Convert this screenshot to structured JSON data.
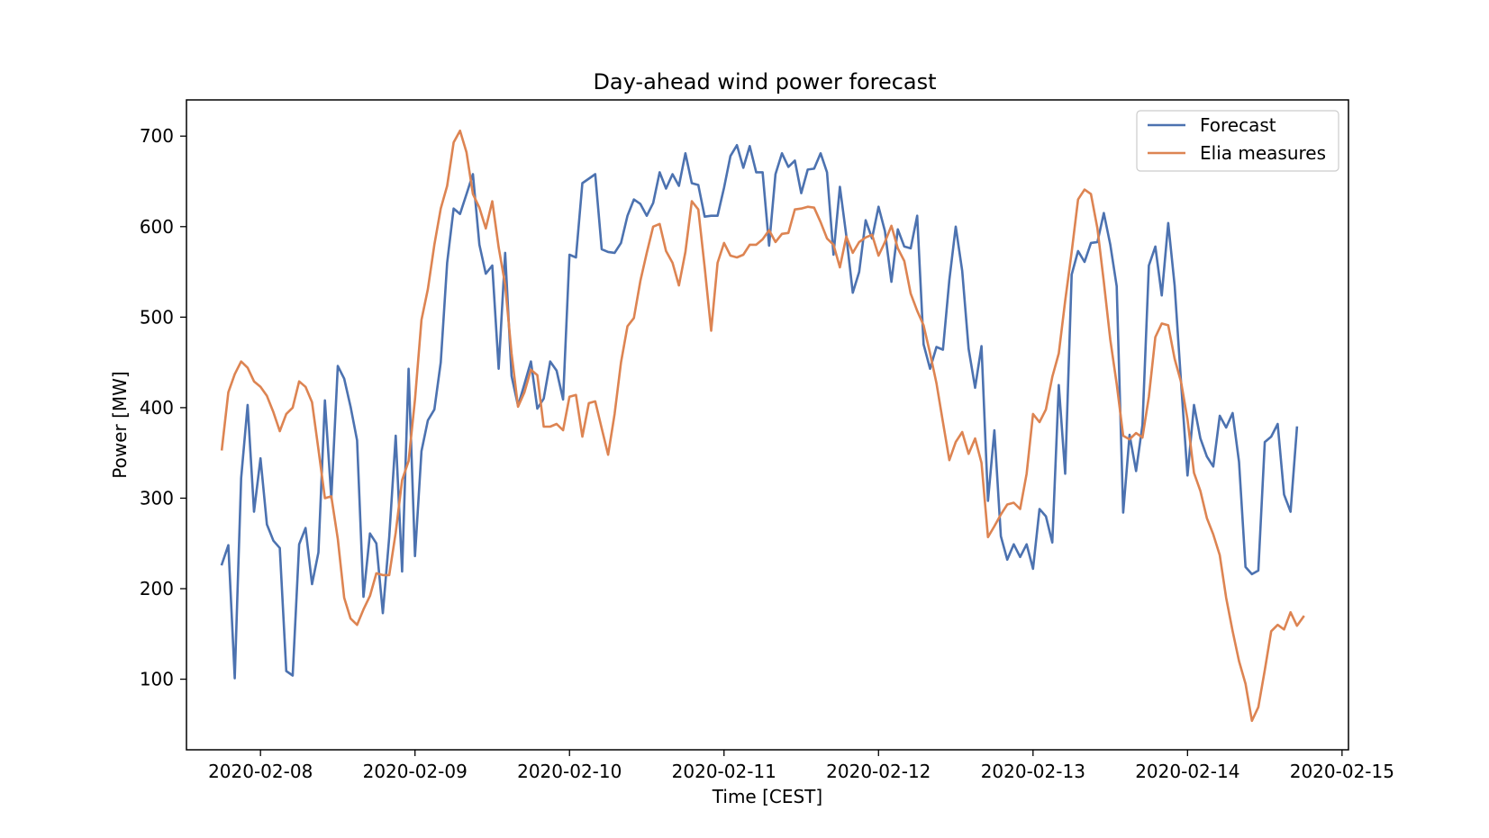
{
  "chart_data": {
    "type": "line",
    "title": "Day-ahead wind power forecast",
    "xlabel": "Time [CEST]",
    "ylabel": "Power [MW]",
    "x_start": "2020-02-07T18:00",
    "x_step_hours": 1,
    "xlim": [
      "2020-02-07 12:30",
      "2020-02-15 01:00"
    ],
    "ylim": [
      22,
      740
    ],
    "x_ticks": [
      "2020-02-08",
      "2020-02-09",
      "2020-02-10",
      "2020-02-11",
      "2020-02-12",
      "2020-02-13",
      "2020-02-14",
      "2020-02-15"
    ],
    "y_ticks": [
      100,
      200,
      300,
      400,
      500,
      600,
      700
    ],
    "grid": false,
    "legend_position": "top-right",
    "series": [
      {
        "name": "Forecast",
        "color": "#4c72b0",
        "values": [
          227,
          248,
          101,
          322,
          403,
          285,
          344,
          271,
          253,
          245,
          109,
          104,
          249,
          267,
          205,
          240,
          408,
          300,
          446,
          432,
          401,
          364,
          191,
          261,
          250,
          173,
          257,
          369,
          219,
          443,
          236,
          352,
          386,
          398,
          450,
          560,
          620,
          614,
          636,
          658,
          580,
          548,
          557,
          443,
          571,
          435,
          402,
          426,
          451,
          399,
          410,
          451,
          441,
          409,
          569,
          566,
          648,
          653,
          658,
          575,
          572,
          571,
          582,
          612,
          630,
          625,
          612,
          626,
          660,
          642,
          658,
          645,
          681,
          648,
          646,
          611,
          612,
          612,
          643,
          678,
          690,
          665,
          689,
          660,
          660,
          579,
          658,
          681,
          666,
          673,
          637,
          663,
          664,
          681,
          660,
          569,
          644,
          590,
          527,
          550,
          607,
          587,
          622,
          595,
          539,
          597,
          578,
          576,
          612,
          470,
          443,
          467,
          464,
          541,
          600,
          551,
          465,
          422,
          468,
          297,
          375,
          258,
          232,
          249,
          235,
          249,
          222,
          288,
          280,
          251,
          425,
          327,
          547,
          573,
          561,
          582,
          583,
          615,
          580,
          534,
          284,
          370,
          330,
          381,
          557,
          578,
          524,
          604,
          535,
          427,
          325,
          403,
          366,
          346,
          335,
          391,
          378,
          394,
          340,
          224,
          216,
          220,
          362,
          368,
          382,
          304,
          285,
          378
        ]
      },
      {
        "name": "Elia measures",
        "color": "#dd8452",
        "values": [
          354,
          417,
          437,
          451,
          444,
          429,
          423,
          413,
          395,
          374,
          393,
          400,
          429,
          423,
          406,
          354,
          300,
          302,
          255,
          190,
          167,
          160,
          177,
          192,
          217,
          215,
          215,
          262,
          320,
          341,
          409,
          497,
          531,
          580,
          620,
          645,
          693,
          706,
          682,
          636,
          621,
          598,
          628,
          577,
          536,
          460,
          401,
          417,
          442,
          436,
          379,
          379,
          382,
          375,
          412,
          414,
          368,
          405,
          407,
          377,
          348,
          393,
          450,
          490,
          499,
          540,
          571,
          600,
          603,
          573,
          560,
          535,
          572,
          628,
          619,
          555,
          485,
          560,
          582,
          568,
          566,
          569,
          580,
          580,
          586,
          596,
          583,
          592,
          593,
          619,
          620,
          622,
          621,
          605,
          587,
          580,
          555,
          589,
          571,
          583,
          588,
          591,
          568,
          583,
          601,
          576,
          562,
          526,
          507,
          491,
          460,
          427,
          384,
          342,
          362,
          373,
          349,
          366,
          339,
          257,
          269,
          282,
          293,
          295,
          288,
          327,
          393,
          384,
          398,
          434,
          460,
          518,
          572,
          630,
          641,
          636,
          598,
          539,
          475,
          426,
          369,
          365,
          372,
          367,
          412,
          478,
          493,
          491,
          454,
          428,
          387,
          328,
          308,
          278,
          260,
          237,
          190,
          153,
          120,
          95,
          54,
          69,
          110,
          153,
          160,
          155,
          174,
          159,
          169
        ]
      }
    ]
  }
}
